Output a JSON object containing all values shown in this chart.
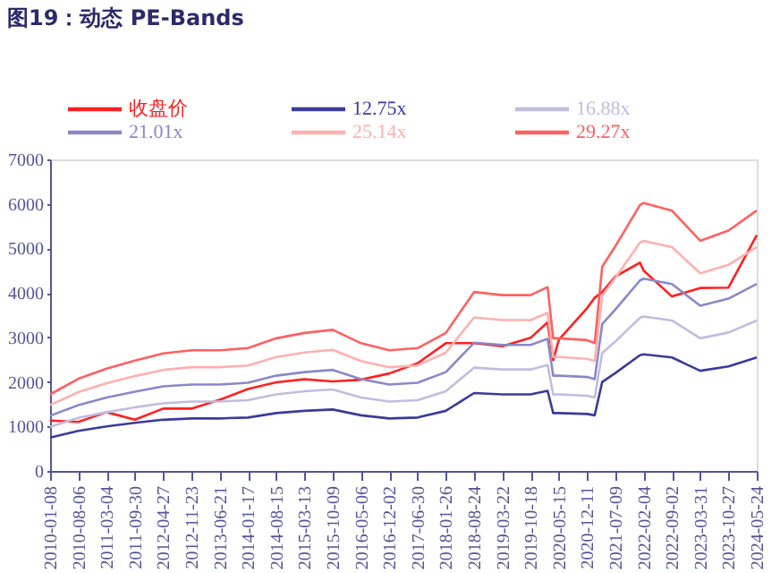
{
  "chart_data": {
    "type": "line",
    "title": "图19：动态 PE-Bands",
    "x": [
      "2010-01-08",
      "2010-08-06",
      "2011-03-04",
      "2011-09-30",
      "2012-04-27",
      "2012-11-23",
      "2013-06-21",
      "2014-01-17",
      "2014-08-15",
      "2015-03-13",
      "2015-10-09",
      "2016-05-06",
      "2016-12-02",
      "2017-06-30",
      "2018-01-26",
      "2018-08-24",
      "2019-03-22",
      "2019-10-18",
      "2020-02-21",
      "2020-04-03",
      "2020-05-15",
      "2020-12-11",
      "2021-02-05",
      "2021-04-02",
      "2021-07-09",
      "2022-01-07",
      "2022-02-04",
      "2022-09-02",
      "2023-03-31",
      "2023-10-27",
      "2024-05-24"
    ],
    "series": [
      {
        "name": "收盘价",
        "color": "#ff2020",
        "values": [
          1130,
          1100,
          1320,
          1150,
          1400,
          1400,
          1600,
          1840,
          1990,
          2060,
          2010,
          2050,
          2190,
          2420,
          2870,
          2870,
          2800,
          2990,
          3340,
          2490,
          2950,
          3660,
          3890,
          4020,
          4370,
          4680,
          4500,
          3920,
          4110,
          4120,
          5300
        ]
      },
      {
        "name": "12.75x",
        "color": "#3b3b9a",
        "values": [
          750,
          900,
          1000,
          1080,
          1150,
          1180,
          1180,
          1200,
          1300,
          1350,
          1380,
          1250,
          1180,
          1200,
          1350,
          1750,
          1720,
          1720,
          1800,
          1300,
          1300,
          1280,
          1250,
          2000,
          2200,
          2600,
          2620,
          2550,
          2250,
          2350,
          2550
        ]
      },
      {
        "name": "16.88x",
        "color": "#c0bde0",
        "values": [
          990,
          1190,
          1320,
          1430,
          1520,
          1560,
          1560,
          1590,
          1720,
          1790,
          1830,
          1650,
          1560,
          1590,
          1790,
          2320,
          2280,
          2280,
          2380,
          1720,
          1720,
          1690,
          1650,
          2650,
          2910,
          3440,
          3470,
          3380,
          2980,
          3110,
          3380
        ]
      },
      {
        "name": "21.01x",
        "color": "#8a88c8",
        "values": [
          1240,
          1480,
          1650,
          1780,
          1900,
          1940,
          1940,
          1980,
          2140,
          2220,
          2270,
          2060,
          1940,
          1980,
          2220,
          2880,
          2830,
          2830,
          2970,
          2140,
          2140,
          2110,
          2060,
          3300,
          3630,
          4280,
          4320,
          4200,
          3710,
          3870,
          4200
        ]
      },
      {
        "name": "25.14x",
        "color": "#ffb0b0",
        "values": [
          1480,
          1770,
          1970,
          2130,
          2270,
          2330,
          2330,
          2370,
          2560,
          2660,
          2720,
          2470,
          2330,
          2370,
          2660,
          3450,
          3390,
          3390,
          3550,
          2560,
          2560,
          2520,
          2470,
          3940,
          4340,
          5130,
          5170,
          5030,
          4440,
          4630,
          5030
        ]
      },
      {
        "name": "29.27x",
        "color": "#ff6060",
        "values": [
          1720,
          2070,
          2300,
          2480,
          2640,
          2710,
          2710,
          2760,
          2980,
          3100,
          3170,
          2870,
          2710,
          2760,
          3100,
          4020,
          3950,
          3950,
          4130,
          2980,
          2980,
          2940,
          2870,
          4590,
          5050,
          5970,
          6020,
          5850,
          5170,
          5400,
          5850
        ]
      }
    ],
    "xlim": [
      "2010-01-08",
      "2024-05-24"
    ],
    "xticks": [
      "2010-01-08",
      "2010-08-06",
      "2011-03-04",
      "2011-09-30",
      "2012-04-27",
      "2012-11-23",
      "2013-06-21",
      "2014-01-17",
      "2014-08-15",
      "2015-03-13",
      "2015-10-09",
      "2016-05-06",
      "2016-12-02",
      "2017-06-30",
      "2018-01-26",
      "2018-08-24",
      "2019-03-22",
      "2019-10-18",
      "2020-05-15",
      "2020-12-11",
      "2021-07-09",
      "2022-02-04",
      "2022-09-02",
      "2023-03-31",
      "2023-10-27",
      "2024-05-24"
    ],
    "ylim": [
      0,
      7000
    ],
    "yticks": [
      0,
      1000,
      2000,
      3000,
      4000,
      5000,
      6000,
      7000
    ],
    "grid": false,
    "legend": "top",
    "marker": "none",
    "line_style": "solid"
  }
}
